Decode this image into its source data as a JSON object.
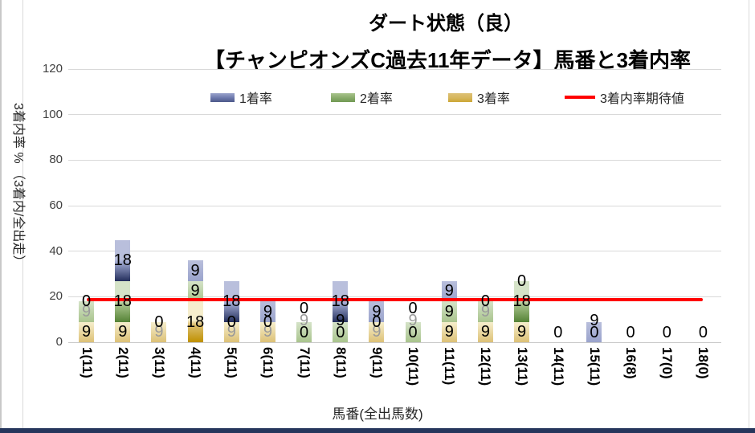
{
  "title": {
    "line1": "ダート状態（良）",
    "line2": "【チャンピオンズC過去11年データ】馬番と3着内率"
  },
  "legend": [
    {
      "label": "1着率",
      "type": "swatch",
      "color": "#6b77ab"
    },
    {
      "label": "2着率",
      "type": "swatch",
      "color": "#87aa6a"
    },
    {
      "label": "3着率",
      "type": "swatch",
      "color": "#d6b65c"
    },
    {
      "label": "3着内率期待値",
      "type": "line",
      "color": "#ff0000"
    }
  ],
  "y_axis": {
    "title": "3着内率 % （3着内/全出走）",
    "min": 0,
    "max": 120,
    "tick_step": 20
  },
  "x_axis": {
    "title": "馬番(全出馬数)"
  },
  "chart_data": {
    "type": "bar",
    "stacked": true,
    "title": "ダート状態（良）【チャンピオンズC過去11年データ】馬番と3着内率",
    "categories": [
      "1(11)",
      "2(11)",
      "3(11)",
      "4(11)",
      "5(11)",
      "6(11)",
      "7(11)",
      "8(11)",
      "9(11)",
      "10(11)",
      "11(11)",
      "12(11)",
      "13(11)",
      "14(11)",
      "15(11)",
      "16(8)",
      "17(0)",
      "18(0)"
    ],
    "series": [
      {
        "name": "1着率",
        "values": [
          0,
          18,
          0,
          9,
          18,
          9,
          0,
          18,
          9,
          0,
          9,
          0,
          0,
          0,
          9,
          0,
          0,
          0
        ],
        "light": "#b9bfdc",
        "mid": "#9aa3cc",
        "dark": "#232e5c"
      },
      {
        "name": "2着率",
        "values": [
          9,
          18,
          0,
          9,
          0,
          0,
          9,
          9,
          0,
          9,
          9,
          9,
          18,
          0,
          0,
          0,
          0,
          0
        ],
        "light": "#d5e3c8",
        "mid": "#a9c48d",
        "dark": "#548235"
      },
      {
        "name": "3着率",
        "values": [
          9,
          9,
          9,
          18,
          9,
          9,
          0,
          0,
          9,
          0,
          9,
          9,
          9,
          0,
          0,
          0,
          0,
          0
        ],
        "light": "#f6eecd",
        "mid": "#ddc176",
        "dark": "#bf9000"
      }
    ],
    "expected_line": {
      "name": "3着内率期待値",
      "value": 18.75,
      "color": "#ff0000"
    },
    "ylim": [
      0,
      120
    ],
    "grid": true,
    "legend_position": "top",
    "dim_labels": [
      {
        "cat": 0,
        "series": "2着率"
      },
      {
        "cat": 2,
        "series": "3着率"
      },
      {
        "cat": 4,
        "series": "3着率"
      },
      {
        "cat": 5,
        "series": "3着率"
      },
      {
        "cat": 6,
        "series": "2着率"
      },
      {
        "cat": 8,
        "series": "3着率"
      },
      {
        "cat": 9,
        "series": "2着率"
      },
      {
        "cat": 11,
        "series": "2着率"
      }
    ]
  },
  "colors": {
    "gridline": "#d9d9d9",
    "axis_text": "#404040",
    "frame_border": "#d9d9d9",
    "bottom_band": "#26365c",
    "expected_line": "#ff0000"
  }
}
